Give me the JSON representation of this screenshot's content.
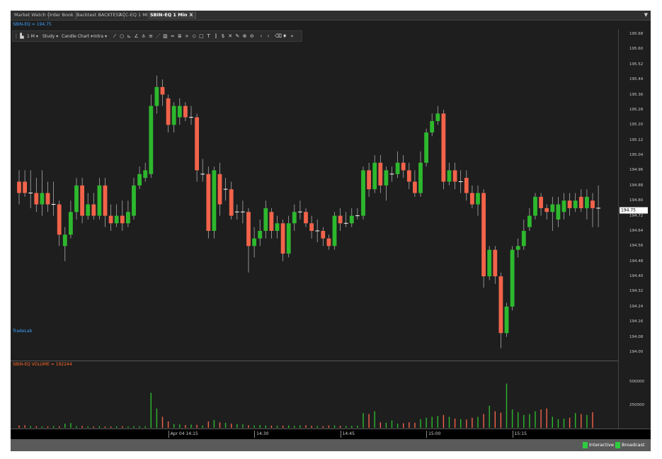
{
  "tabs": [
    {
      "label": "Market Watch"
    },
    {
      "label": "Order Book"
    },
    {
      "label": "Backtest BACKTEST"
    },
    {
      "label": "ACC-EQ 1 Min"
    },
    {
      "label": "SBIN-EQ 1 Min",
      "close": "X"
    }
  ],
  "dropdown_icon": "caret-down-icon",
  "symbol_label": "SBIN-EQ = 194.75",
  "toolbar": {
    "interval": "1 M",
    "study": "Study",
    "chart_type": "Candle Chart",
    "intra": "Intra",
    "tools": [
      "trendline-icon",
      "circle-icon",
      "fib-icon",
      "angle-icon",
      "pitchfork-icon",
      "hlines-icon",
      "channel-icon",
      "bars-icon",
      "equal-icon",
      "lines-icon",
      "fan-icon",
      "arc-icon",
      "rect-icon",
      "text-icon",
      "mark-icon",
      "dollar-icon",
      "cross-icon",
      "pen-icon",
      "zoom-in-icon",
      "zoom-out-icon",
      "scroll-left-icon",
      "scroll-right-icon",
      "eraser-icon",
      "fill-icon",
      "collapse-icon"
    ]
  },
  "watermark": "TradeLab",
  "volume_label": "SBIN-EQ VOLUME = 192244",
  "status": {
    "interactive": "Interactive",
    "broadcast": "Broadcast"
  },
  "colors": {
    "up": "#2db82d",
    "down": "#f2634a",
    "background": "#1e1e1e"
  },
  "chart_data": {
    "type": "candlestick",
    "y_ticks": [
      "195.68",
      "195.60",
      "195.52",
      "195.44",
      "195.36",
      "195.28",
      "195.20",
      "195.12",
      "195.04",
      "194.96",
      "194.88",
      "194.80",
      "194.72",
      "194.64",
      "194.56",
      "194.48",
      "194.40",
      "194.32",
      "194.24",
      "194.16",
      "194.08",
      "194.00"
    ],
    "ylim": [
      194.0,
      195.68
    ],
    "last_price": "194.75",
    "volume_ticks": [
      "500000",
      "250000"
    ],
    "volume_ylim": [
      0,
      700000
    ],
    "time_labels": [
      {
        "label": "Apr 04 14:15",
        "index": 26
      },
      {
        "label": "14:30",
        "index": 41
      },
      {
        "label": "14:45",
        "index": 56
      },
      {
        "label": "15:00",
        "index": 71
      },
      {
        "label": "15:15",
        "index": 86
      }
    ],
    "candles": [
      [
        194.9,
        194.84,
        194.96,
        194.78
      ],
      [
        194.9,
        194.84,
        194.96,
        194.82
      ],
      [
        194.84,
        194.84,
        194.96,
        194.76
      ],
      [
        194.84,
        194.78,
        194.92,
        194.74
      ],
      [
        194.78,
        194.84,
        194.96,
        194.72
      ],
      [
        194.84,
        194.78,
        194.9,
        194.74
      ],
      [
        194.78,
        194.78,
        194.9,
        194.72
      ],
      [
        194.78,
        194.62,
        194.8,
        194.56
      ],
      [
        194.56,
        194.62,
        194.66,
        194.48
      ],
      [
        194.62,
        194.74,
        194.8,
        194.6
      ],
      [
        194.74,
        194.88,
        194.92,
        194.7
      ],
      [
        194.88,
        194.72,
        194.92,
        194.68
      ],
      [
        194.72,
        194.78,
        194.84,
        194.7
      ],
      [
        194.78,
        194.72,
        194.84,
        194.7
      ],
      [
        194.72,
        194.88,
        194.92,
        194.7
      ],
      [
        194.88,
        194.72,
        194.92,
        194.66
      ],
      [
        194.72,
        194.68,
        194.78,
        194.64
      ],
      [
        194.68,
        194.72,
        194.78,
        194.66
      ],
      [
        194.72,
        194.68,
        194.8,
        194.64
      ],
      [
        194.68,
        194.74,
        194.8,
        194.66
      ],
      [
        194.72,
        194.88,
        194.92,
        194.7
      ],
      [
        194.88,
        194.94,
        194.98,
        194.86
      ],
      [
        194.92,
        194.96,
        195.0,
        194.9
      ],
      [
        194.94,
        195.3,
        195.36,
        194.92
      ],
      [
        195.3,
        195.4,
        195.46,
        195.26
      ],
      [
        195.4,
        195.36,
        195.44,
        195.3
      ],
      [
        195.34,
        195.2,
        195.36,
        195.16
      ],
      [
        195.2,
        195.3,
        195.32,
        195.16
      ],
      [
        195.24,
        195.3,
        195.34,
        195.2
      ],
      [
        195.3,
        195.24,
        195.32,
        195.22
      ],
      [
        195.24,
        195.24,
        195.3,
        195.2
      ],
      [
        195.24,
        194.96,
        195.26,
        194.9
      ],
      [
        194.94,
        194.94,
        195.02,
        194.9
      ],
      [
        194.94,
        194.64,
        194.98,
        194.6
      ],
      [
        194.64,
        194.96,
        194.98,
        194.6
      ],
      [
        194.94,
        194.78,
        195.0,
        194.72
      ],
      [
        194.86,
        194.86,
        194.92,
        194.8
      ],
      [
        194.86,
        194.72,
        194.9,
        194.7
      ],
      [
        194.74,
        194.74,
        194.78,
        194.7
      ],
      [
        194.74,
        194.74,
        194.8,
        194.68
      ],
      [
        194.74,
        194.56,
        194.76,
        194.42
      ],
      [
        194.56,
        194.6,
        194.66,
        194.5
      ],
      [
        194.6,
        194.64,
        194.7,
        194.56
      ],
      [
        194.64,
        194.76,
        194.8,
        194.6
      ],
      [
        194.74,
        194.64,
        194.76,
        194.6
      ],
      [
        194.64,
        194.68,
        194.72,
        194.6
      ],
      [
        194.68,
        194.52,
        194.7,
        194.48
      ],
      [
        194.52,
        194.68,
        194.72,
        194.5
      ],
      [
        194.68,
        194.74,
        194.78,
        194.64
      ],
      [
        194.74,
        194.74,
        194.8,
        194.7
      ],
      [
        194.74,
        194.68,
        194.76,
        194.66
      ],
      [
        194.68,
        194.64,
        194.72,
        194.6
      ],
      [
        194.64,
        194.64,
        194.7,
        194.58
      ],
      [
        194.64,
        194.6,
        194.66,
        194.56
      ],
      [
        194.6,
        194.56,
        194.62,
        194.54
      ],
      [
        194.56,
        194.72,
        194.74,
        194.54
      ],
      [
        194.72,
        194.68,
        194.76,
        194.64
      ],
      [
        194.68,
        194.68,
        194.74,
        194.66
      ],
      [
        194.68,
        194.72,
        194.76,
        194.66
      ],
      [
        194.72,
        194.72,
        194.76,
        194.7
      ],
      [
        194.72,
        194.96,
        194.98,
        194.7
      ],
      [
        194.96,
        194.86,
        195.0,
        194.82
      ],
      [
        194.86,
        195.0,
        195.04,
        194.84
      ],
      [
        195.0,
        194.88,
        195.04,
        194.84
      ],
      [
        194.88,
        194.96,
        194.98,
        194.8
      ],
      [
        194.94,
        194.94,
        194.98,
        194.9
      ],
      [
        194.94,
        195.0,
        195.06,
        194.92
      ],
      [
        195.0,
        194.96,
        195.04,
        194.92
      ],
      [
        194.96,
        194.9,
        195.0,
        194.86
      ],
      [
        194.9,
        194.84,
        194.96,
        194.82
      ],
      [
        194.84,
        195.0,
        195.06,
        194.82
      ],
      [
        195.0,
        195.16,
        195.18,
        194.98
      ],
      [
        195.16,
        195.22,
        195.26,
        195.14
      ],
      [
        195.22,
        195.26,
        195.3,
        195.2
      ],
      [
        195.26,
        194.9,
        195.28,
        194.86
      ],
      [
        194.9,
        194.96,
        195.0,
        194.88
      ],
      [
        194.96,
        194.9,
        195.0,
        194.86
      ],
      [
        194.9,
        194.9,
        194.96,
        194.84
      ],
      [
        194.92,
        194.84,
        194.96,
        194.8
      ],
      [
        194.84,
        194.78,
        194.88,
        194.76
      ],
      [
        194.78,
        194.84,
        194.88,
        194.72
      ],
      [
        194.84,
        194.4,
        194.86,
        194.34
      ],
      [
        194.4,
        194.54,
        194.56,
        194.38
      ],
      [
        194.54,
        194.4,
        194.56,
        194.36
      ],
      [
        194.4,
        194.1,
        194.42,
        194.02
      ],
      [
        194.1,
        194.24,
        194.26,
        194.08
      ],
      [
        194.24,
        194.54,
        194.56,
        194.22
      ],
      [
        194.54,
        194.56,
        194.6,
        194.5
      ],
      [
        194.56,
        194.64,
        194.7,
        194.54
      ],
      [
        194.66,
        194.72,
        194.76,
        194.64
      ],
      [
        194.72,
        194.82,
        194.84,
        194.7
      ],
      [
        194.82,
        194.76,
        194.84,
        194.72
      ],
      [
        194.76,
        194.74,
        194.78,
        194.7
      ],
      [
        194.74,
        194.78,
        194.82,
        194.64
      ],
      [
        194.7,
        194.78,
        194.82,
        194.66
      ],
      [
        194.74,
        194.8,
        194.84,
        194.7
      ],
      [
        194.8,
        194.76,
        194.84,
        194.72
      ],
      [
        194.76,
        194.8,
        194.84,
        194.74
      ],
      [
        194.82,
        194.76,
        194.86,
        194.74
      ],
      [
        194.76,
        194.82,
        194.86,
        194.7
      ],
      [
        194.8,
        194.76,
        194.84,
        194.66
      ],
      [
        194.76,
        194.76,
        194.88,
        194.66
      ]
    ],
    "volumes": [
      25000,
      28000,
      20000,
      18000,
      15000,
      16000,
      19000,
      17000,
      45000,
      52000,
      18000,
      20000,
      16000,
      15000,
      18000,
      14000,
      15000,
      16000,
      17000,
      15000,
      18000,
      16000,
      17000,
      380000,
      210000,
      120000,
      70000,
      40000,
      38000,
      30000,
      35000,
      32000,
      25000,
      70000,
      85000,
      60000,
      55000,
      45000,
      40000,
      38000,
      28000,
      26000,
      30000,
      25000,
      24000,
      22000,
      23000,
      25000,
      22000,
      26000,
      28000,
      22000,
      20000,
      18000,
      25000,
      26000,
      22000,
      21000,
      23000,
      24000,
      160000,
      150000,
      180000,
      60000,
      55000,
      80000,
      45000,
      50000,
      60000,
      55000,
      95000,
      110000,
      120000,
      130000,
      140000,
      120000,
      100000,
      95000,
      90000,
      110000,
      120000,
      150000,
      240000,
      180000,
      165000,
      480000,
      200000,
      170000,
      140000,
      150000,
      180000,
      200000,
      210000,
      120000,
      95000,
      100000,
      110000,
      160000,
      150000,
      140000,
      170000
    ]
  }
}
